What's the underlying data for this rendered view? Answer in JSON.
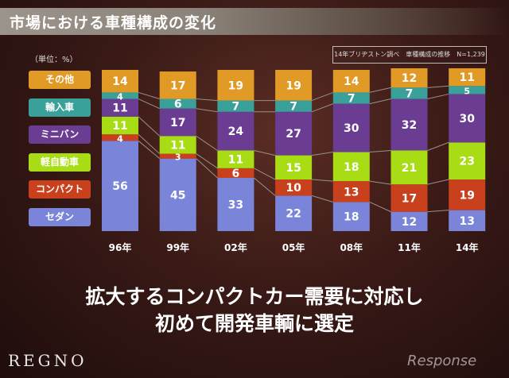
{
  "header": {
    "title": "市場における車種構成の変化",
    "unit": "（単位：%）",
    "source": "14年ブリヂストン調べ　車種構成の推移　N=1,239"
  },
  "message": {
    "line1": "拡大するコンパクトカー需要に対応し",
    "line2": "初めて開発車輌に選定"
  },
  "footer": {
    "logo": "REGNO",
    "watermark": "Response"
  },
  "chart_data": {
    "type": "bar",
    "stacked": true,
    "ylim": [
      0,
      100
    ],
    "categories": [
      "96年",
      "99年",
      "02年",
      "05年",
      "08年",
      "11年",
      "14年"
    ],
    "series": [
      {
        "name": "セダン",
        "color": "#7a84d8",
        "values": [
          56,
          45,
          33,
          22,
          18,
          12,
          13
        ]
      },
      {
        "name": "コンパクト",
        "color": "#c8401c",
        "values": [
          4,
          3,
          6,
          10,
          13,
          17,
          19
        ]
      },
      {
        "name": "軽自動車",
        "color": "#a8dc14",
        "values": [
          11,
          11,
          11,
          15,
          18,
          21,
          23
        ]
      },
      {
        "name": "ミニバン",
        "color": "#6a3c92",
        "values": [
          11,
          17,
          24,
          27,
          30,
          32,
          30
        ]
      },
      {
        "name": "輸入車",
        "color": "#3aa09a",
        "values": [
          4,
          6,
          7,
          7,
          7,
          7,
          5
        ]
      },
      {
        "name": "その他",
        "color": "#e29a26",
        "values": [
          14,
          17,
          19,
          19,
          14,
          12,
          11
        ]
      }
    ]
  }
}
